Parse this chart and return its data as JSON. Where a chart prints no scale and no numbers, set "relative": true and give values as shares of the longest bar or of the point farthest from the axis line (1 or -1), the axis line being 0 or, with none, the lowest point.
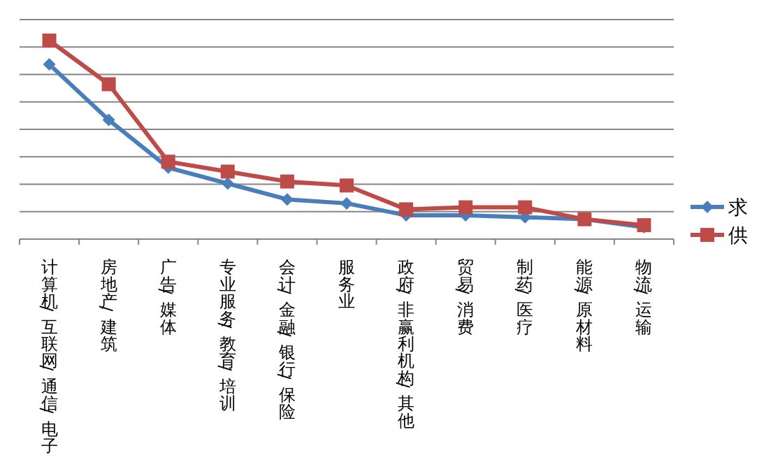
{
  "chart_data": {
    "type": "line",
    "relative": true,
    "grid": "y",
    "legend": "right",
    "line_style": "solid",
    "categories": [
      "计算机/互联网/通信/电子",
      "房地产/建筑",
      "广告/媒体",
      "专业服务/教育/培训",
      "会计/金融/银行/保险",
      "服务业",
      "政府/非赢利机构/其他",
      "贸易/消费",
      "制药/医疗",
      "能源/原材料",
      "物流/运输"
    ],
    "series": [
      {
        "name": "求",
        "color": "#4a7ebb",
        "marker": "diamond",
        "values": [
          0.88,
          0.6,
          0.36,
          0.28,
          0.2,
          0.18,
          0.12,
          0.12,
          0.11,
          0.1,
          0.06
        ]
      },
      {
        "name": "供",
        "color": "#be4b48",
        "marker": "square",
        "values": [
          1,
          0.78,
          0.39,
          0.34,
          0.29,
          0.27,
          0.15,
          0.16,
          0.16,
          0.1,
          0.07
        ]
      }
    ]
  }
}
